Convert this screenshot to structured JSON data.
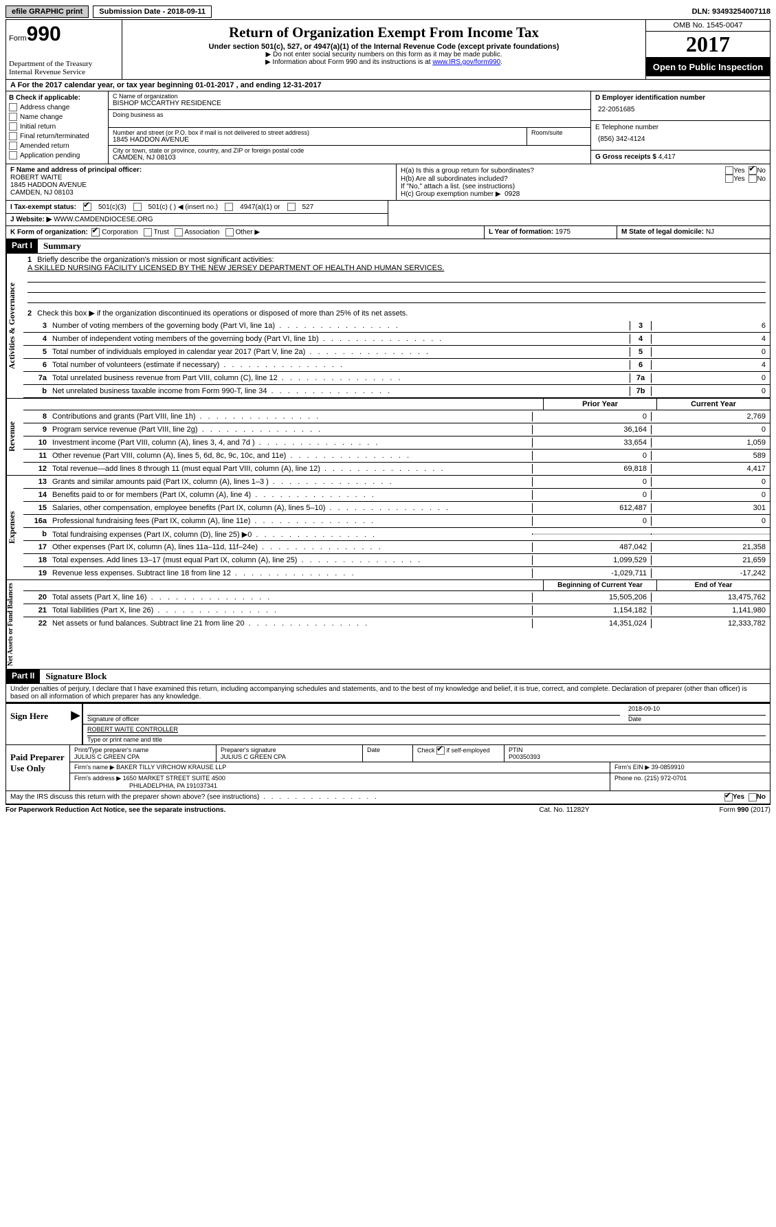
{
  "topbar": {
    "efile": "efile GRAPHIC print",
    "submission_label": "Submission Date - ",
    "submission_date": "2018-09-11",
    "dln_label": "DLN: ",
    "dln": "93493254007118"
  },
  "header": {
    "form_label": "Form",
    "form_num": "990",
    "dept1": "Department of the Treasury",
    "dept2": "Internal Revenue Service",
    "title": "Return of Organization Exempt From Income Tax",
    "subtitle": "Under section 501(c), 527, or 4947(a)(1) of the Internal Revenue Code (except private foundations)",
    "line1": "▶ Do not enter social security numbers on this form as it may be made public.",
    "line2_pre": "▶ Information about Form 990 and its instructions is at ",
    "line2_link": "www.IRS.gov/form990",
    "omb": "OMB No. 1545-0047",
    "year": "2017",
    "open": "Open to Public Inspection"
  },
  "section_a": "A  For the 2017 calendar year, or tax year beginning 01-01-2017   , and ending 12-31-2017",
  "b": {
    "header": "B Check if applicable:",
    "opts": [
      "Address change",
      "Name change",
      "Initial return",
      "Final return/terminated",
      "Amended return",
      "Application pending"
    ]
  },
  "c": {
    "name_label": "C Name of organization",
    "name": "BISHOP MCCARTHY RESIDENCE",
    "dba_label": "Doing business as",
    "street_label": "Number and street (or P.O. box if mail is not delivered to street address)",
    "room_label": "Room/suite",
    "street": "1845 HADDON AVENUE",
    "city_label": "City or town, state or province, country, and ZIP or foreign postal code",
    "city": "CAMDEN, NJ  08103"
  },
  "d": {
    "ein_label": "D Employer identification number",
    "ein": "22-2051685",
    "tel_label": "E Telephone number",
    "tel": "(856) 342-4124",
    "gross_label": "G Gross receipts $ ",
    "gross": "4,417"
  },
  "f": {
    "label": "F Name and address of principal officer:",
    "name": "ROBERT WAITE",
    "addr1": "1845 HADDON AVENUE",
    "addr2": "CAMDEN, NJ  08103"
  },
  "h": {
    "ha_label": "H(a)  Is this a group return for subordinates?",
    "hb_label": "H(b)  Are all subordinates included?",
    "hb_note": "If \"No,\" attach a list. (see instructions)",
    "hc_label": "H(c)  Group exemption number ▶",
    "hc_val": "0928",
    "yes": "Yes",
    "no": "No"
  },
  "i": {
    "label": "I  Tax-exempt status:",
    "opts": [
      "501(c)(3)",
      "501(c) (  ) ◀ (insert no.)",
      "4947(a)(1) or",
      "527"
    ]
  },
  "j": {
    "label": "J  Website: ▶",
    "val": " WWW.CAMDENDIOCESE.ORG"
  },
  "k": {
    "label": "K Form of organization:",
    "opts": [
      "Corporation",
      "Trust",
      "Association",
      "Other ▶"
    ],
    "l_label": "L Year of formation: ",
    "l_val": "1975",
    "m_label": "M State of legal domicile: ",
    "m_val": "NJ"
  },
  "part1": {
    "header": "Part I",
    "title": "Summary",
    "side1": "Activities & Governance",
    "side2": "Revenue",
    "side3": "Expenses",
    "side4": "Net Assets or Fund Balances",
    "q1": "Briefly describe the organization's mission or most significant activities:",
    "q1a": "A SKILLED NURSING FACILITY LICENSED BY THE NEW JERSEY DEPARTMENT OF HEALTH AND HUMAN SERVICES.",
    "q2": "Check this box ▶  if the organization discontinued its operations or disposed of more than 25% of its net assets.",
    "rows_gov": [
      {
        "n": "3",
        "d": "Number of voting members of the governing body (Part VI, line 1a)",
        "b": "3",
        "v": "6"
      },
      {
        "n": "4",
        "d": "Number of independent voting members of the governing body (Part VI, line 1b)",
        "b": "4",
        "v": "4"
      },
      {
        "n": "5",
        "d": "Total number of individuals employed in calendar year 2017 (Part V, line 2a)",
        "b": "5",
        "v": "0"
      },
      {
        "n": "6",
        "d": "Total number of volunteers (estimate if necessary)",
        "b": "6",
        "v": "4"
      },
      {
        "n": "7a",
        "d": "Total unrelated business revenue from Part VIII, column (C), line 12",
        "b": "7a",
        "v": "0"
      },
      {
        "n": "b",
        "d": "Net unrelated business taxable income from Form 990-T, line 34",
        "b": "7b",
        "v": "0"
      }
    ],
    "col_prior": "Prior Year",
    "col_current": "Current Year",
    "rows_rev": [
      {
        "n": "8",
        "d": "Contributions and grants (Part VIII, line 1h)",
        "p": "0",
        "c": "2,769"
      },
      {
        "n": "9",
        "d": "Program service revenue (Part VIII, line 2g)",
        "p": "36,164",
        "c": "0"
      },
      {
        "n": "10",
        "d": "Investment income (Part VIII, column (A), lines 3, 4, and 7d )",
        "p": "33,654",
        "c": "1,059"
      },
      {
        "n": "11",
        "d": "Other revenue (Part VIII, column (A), lines 5, 6d, 8c, 9c, 10c, and 11e)",
        "p": "0",
        "c": "589"
      },
      {
        "n": "12",
        "d": "Total revenue—add lines 8 through 11 (must equal Part VIII, column (A), line 12)",
        "p": "69,818",
        "c": "4,417"
      }
    ],
    "rows_exp": [
      {
        "n": "13",
        "d": "Grants and similar amounts paid (Part IX, column (A), lines 1–3 )",
        "p": "0",
        "c": "0"
      },
      {
        "n": "14",
        "d": "Benefits paid to or for members (Part IX, column (A), line 4)",
        "p": "0",
        "c": "0"
      },
      {
        "n": "15",
        "d": "Salaries, other compensation, employee benefits (Part IX, column (A), lines 5–10)",
        "p": "612,487",
        "c": "301"
      },
      {
        "n": "16a",
        "d": "Professional fundraising fees (Part IX, column (A), line 11e)",
        "p": "0",
        "c": "0"
      },
      {
        "n": "b",
        "d": "Total fundraising expenses (Part IX, column (D), line 25) ▶0",
        "p": "",
        "c": "",
        "gray": true
      },
      {
        "n": "17",
        "d": "Other expenses (Part IX, column (A), lines 11a–11d, 11f–24e)",
        "p": "487,042",
        "c": "21,358"
      },
      {
        "n": "18",
        "d": "Total expenses. Add lines 13–17 (must equal Part IX, column (A), line 25)",
        "p": "1,099,529",
        "c": "21,659"
      },
      {
        "n": "19",
        "d": "Revenue less expenses. Subtract line 18 from line 12",
        "p": "-1,029,711",
        "c": "-17,242"
      }
    ],
    "col_begin": "Beginning of Current Year",
    "col_end": "End of Year",
    "rows_net": [
      {
        "n": "20",
        "d": "Total assets (Part X, line 16)",
        "p": "15,505,206",
        "c": "13,475,762"
      },
      {
        "n": "21",
        "d": "Total liabilities (Part X, line 26)",
        "p": "1,154,182",
        "c": "1,141,980"
      },
      {
        "n": "22",
        "d": "Net assets or fund balances. Subtract line 21 from line 20",
        "p": "14,351,024",
        "c": "12,333,782"
      }
    ]
  },
  "part2": {
    "header": "Part II",
    "title": "Signature Block",
    "declaration": "Under penalties of perjury, I declare that I have examined this return, including accompanying schedules and statements, and to the best of my knowledge and belief, it is true, correct, and complete. Declaration of preparer (other than officer) is based on all information of which preparer has any knowledge.",
    "sign_here": "Sign Here",
    "sig_officer": "Signature of officer",
    "sig_date": "2018-09-10",
    "date_label": "Date",
    "officer_name": "ROBERT WAITE CONTROLLER",
    "type_name": "Type or print name and title",
    "paid": "Paid Preparer Use Only",
    "prep_name_label": "Print/Type preparer's name",
    "prep_name": "JULIUS C GREEN CPA",
    "prep_sig_label": "Preparer's signature",
    "prep_sig": "JULIUS C GREEN CPA",
    "check_self": "Check          if self-employed",
    "ptin_label": "PTIN",
    "ptin": "P00350393",
    "firm_name_label": "Firm's name      ▶ ",
    "firm_name": "BAKER TILLY VIRCHOW KRAUSE LLP",
    "firm_ein_label": "Firm's EIN ▶ ",
    "firm_ein": "39-0859910",
    "firm_addr_label": "Firm's address ▶ ",
    "firm_addr": "1650 MARKET STREET SUITE 4500",
    "firm_city": "PHILADELPHIA, PA  191037341",
    "phone_label": "Phone no. ",
    "phone": "(215) 972-0701",
    "may_irs": "May the IRS discuss this return with the preparer shown above? (see instructions)",
    "yes": "Yes",
    "no": "No"
  },
  "footer": {
    "left": "For Paperwork Reduction Act Notice, see the separate instructions.",
    "center": "Cat. No. 11282Y",
    "right": "Form 990 (2017)"
  }
}
